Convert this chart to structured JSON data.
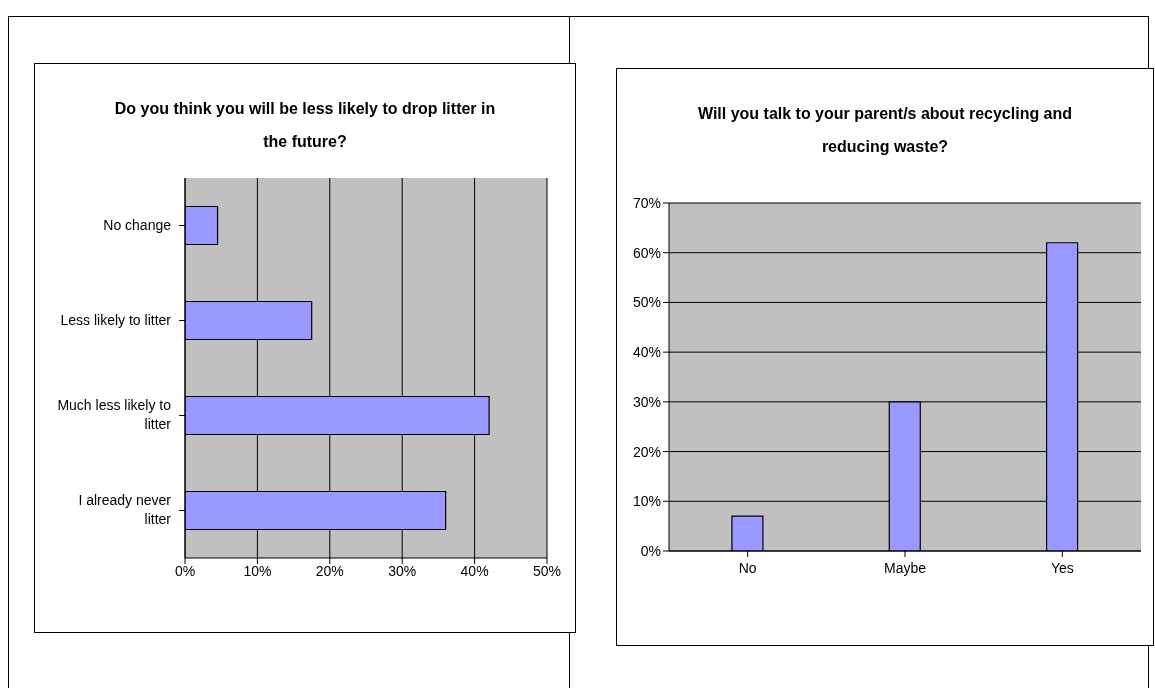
{
  "chart_data": [
    {
      "type": "bar",
      "orientation": "horizontal",
      "title": "Do you think you will be less likely to drop litter in the future?",
      "categories": [
        "No change",
        "Less likely to litter",
        "Much less likely to litter",
        "I already never litter"
      ],
      "values": [
        4.5,
        17.5,
        42,
        36
      ],
      "color": "#9999ff",
      "xlim": [
        0,
        50
      ],
      "xticks": [
        {
          "value": 0,
          "label": "0%"
        },
        {
          "value": 10,
          "label": "10%"
        },
        {
          "value": 20,
          "label": "20%"
        },
        {
          "value": 30,
          "label": "30%"
        },
        {
          "value": 40,
          "label": "40%"
        },
        {
          "value": 50,
          "label": "50%"
        }
      ],
      "grid": "x"
    },
    {
      "type": "bar",
      "title": "Will you talk to your parent/s about recycling and reducing waste?",
      "categories": [
        "No",
        "Maybe",
        "Yes"
      ],
      "values": [
        7,
        30,
        62
      ],
      "color": "#9999ff",
      "ylim": [
        0,
        70
      ],
      "yticks": [
        {
          "value": 0,
          "label": "0%"
        },
        {
          "value": 10,
          "label": "10%"
        },
        {
          "value": 20,
          "label": "20%"
        },
        {
          "value": 30,
          "label": "30%"
        },
        {
          "value": 40,
          "label": "40%"
        },
        {
          "value": 50,
          "label": "50%"
        },
        {
          "value": 60,
          "label": "60%"
        },
        {
          "value": 70,
          "label": "70%"
        }
      ],
      "grid": "y"
    }
  ]
}
